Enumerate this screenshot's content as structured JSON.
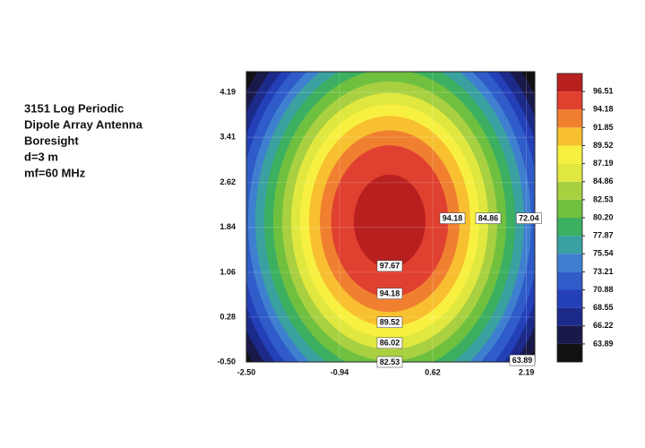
{
  "chart_data": {
    "type": "contour",
    "title_lines": [
      "3151 Log Periodic",
      "Dipole Array Antenna",
      "Boresight",
      "d=3 m",
      "mf=60 MHz"
    ],
    "xlim": [
      -2.5,
      2.33
    ],
    "ylim": [
      -0.5,
      4.55
    ],
    "xticks": [
      {
        "value": -2.5,
        "label": "-2.50"
      },
      -0.94,
      0.62,
      2.19
    ],
    "yticks": [
      {
        "value": -0.5,
        "label": "-0.50"
      },
      0.28,
      1.06,
      1.84,
      2.62,
      3.41,
      4.19
    ],
    "grid": true,
    "background_color": "#111111",
    "center": [
      -0.1,
      1.95
    ],
    "contours": [
      {
        "level": 63.89,
        "rx": 2.93,
        "ry": 3.95,
        "color": "#1a1a4a"
      },
      {
        "level": 66.22,
        "rx": 2.78,
        "ry": 3.75,
        "color": "#1c2a8a"
      },
      {
        "level": 68.55,
        "rx": 2.64,
        "ry": 3.57,
        "color": "#2440b8"
      },
      {
        "level": 70.88,
        "rx": 2.52,
        "ry": 3.41,
        "color": "#2f5cc8"
      },
      {
        "level": 73.21,
        "rx": 2.37,
        "ry": 3.2,
        "color": "#3f7fd0"
      },
      {
        "level": 75.54,
        "rx": 2.25,
        "ry": 3.04,
        "color": "#3aa0a0"
      },
      {
        "level": 77.87,
        "rx": 2.1,
        "ry": 2.84,
        "color": "#3cb060"
      },
      {
        "level": 80.2,
        "rx": 1.95,
        "ry": 2.64,
        "color": "#70c040"
      },
      {
        "level": 82.53,
        "rx": 1.8,
        "ry": 2.43,
        "color": "#a8d040"
      },
      {
        "level": 84.86,
        "rx": 1.65,
        "ry": 2.23,
        "color": "#e0e840"
      },
      {
        "level": 87.19,
        "rx": 1.5,
        "ry": 2.03,
        "color": "#f8f040"
      },
      {
        "level": 89.52,
        "rx": 1.35,
        "ry": 1.83,
        "color": "#f8c030"
      },
      {
        "level": 91.85,
        "rx": 1.17,
        "ry": 1.58,
        "color": "#f08030"
      },
      {
        "level": 94.18,
        "rx": 0.98,
        "ry": 1.32,
        "color": "#e04030"
      },
      {
        "level": 96.51,
        "rx": 0.6,
        "ry": 0.81,
        "color": "#b82020"
      }
    ],
    "colorbar": {
      "lim": [
        61.56,
        98.84
      ],
      "ticks": [
        63.89,
        66.22,
        68.55,
        70.88,
        73.21,
        75.54,
        77.87,
        {
          "value": 80.2,
          "label": "80.20"
        },
        82.53,
        84.86,
        87.19,
        89.52,
        91.85,
        94.18,
        96.51
      ]
    },
    "contour_labels": [
      {
        "x": 0.95,
        "y": 2.0,
        "value": 94.18
      },
      {
        "x": 1.55,
        "y": 2.0,
        "value": 84.86
      },
      {
        "x": 2.23,
        "y": 2.0,
        "value": 72.04
      },
      {
        "x": -0.1,
        "y": 1.17,
        "value": 97.67
      },
      {
        "x": -0.1,
        "y": 0.69,
        "value": 94.18
      },
      {
        "x": -0.1,
        "y": 0.19,
        "value": 89.52
      },
      {
        "x": -0.1,
        "y": -0.17,
        "value": 86.02
      },
      {
        "x": -0.1,
        "y": -0.5,
        "value": 82.53
      },
      {
        "x": 2.12,
        "y": -0.47,
        "value": 63.89
      }
    ]
  }
}
